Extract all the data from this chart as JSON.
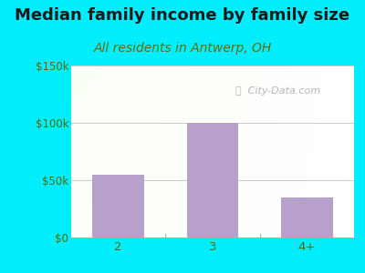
{
  "title": "Median family income by family size",
  "subtitle": "All residents in Antwerp, OH",
  "categories": [
    "2",
    "3",
    "4+"
  ],
  "values": [
    55000,
    100000,
    35000
  ],
  "bar_color": "#b8a0cc",
  "ylim": [
    0,
    150000
  ],
  "yticks": [
    0,
    50000,
    100000,
    150000
  ],
  "ytick_labels": [
    "$0",
    "$50k",
    "$100k",
    "$150k"
  ],
  "title_fontsize": 13,
  "subtitle_fontsize": 10,
  "title_color": "#1a1a1a",
  "subtitle_color": "#6b6b00",
  "tick_color": "#5a6a00",
  "bg_outer": "#00eeff",
  "watermark": "ⓘ  City-Data.com",
  "grid_color": "#cccccc"
}
